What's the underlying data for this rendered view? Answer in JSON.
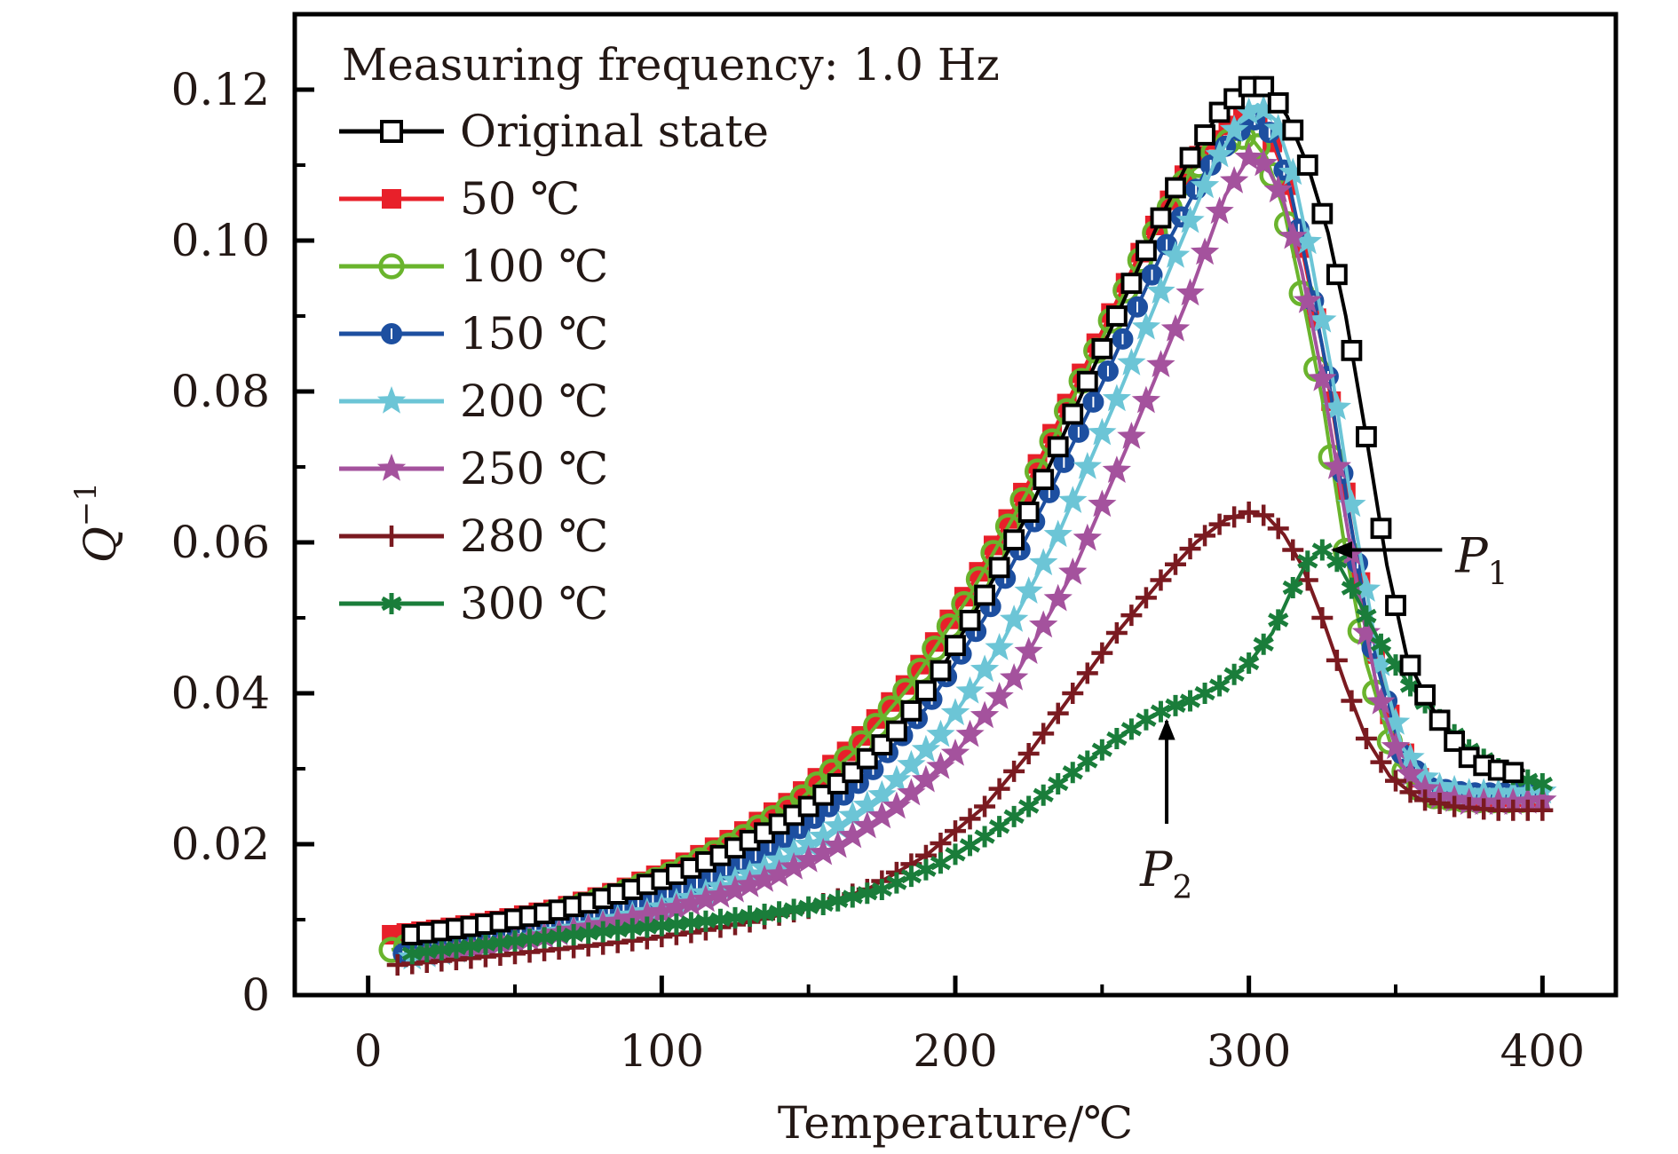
{
  "chart_data": {
    "type": "line",
    "title": "",
    "xlabel": "Temperature/℃",
    "ylabel": "Q",
    "ylabel_superscript": "−1",
    "xlim": [
      -25,
      425
    ],
    "ylim": [
      0,
      0.13
    ],
    "xticks": [
      0,
      100,
      200,
      300,
      400
    ],
    "xtick_labels": [
      "0",
      "100",
      "200",
      "300",
      "400"
    ],
    "yticks": [
      0,
      0.02,
      0.04,
      0.06,
      0.08,
      0.1,
      0.12
    ],
    "ytick_labels": [
      "0",
      "0.02",
      "0.04",
      "0.06",
      "0.08",
      "0.10",
      "0.12"
    ],
    "grid": false,
    "legend": {
      "placement": "top-left",
      "header": "Measuring frequency: 1.0 Hz"
    },
    "series": [
      {
        "name": "Original state",
        "color": "#000000",
        "marker": "square-open",
        "x": [
          15,
          30,
          45,
          60,
          75,
          90,
          105,
          120,
          135,
          150,
          165,
          180,
          195,
          210,
          225,
          240,
          255,
          270,
          280,
          290,
          297,
          302,
          307,
          313,
          320,
          327,
          333,
          340,
          347,
          354,
          361,
          368,
          375,
          382,
          390,
          394
        ],
        "y": [
          0.008,
          0.0088,
          0.0097,
          0.0108,
          0.0122,
          0.014,
          0.016,
          0.0185,
          0.0215,
          0.025,
          0.0295,
          0.035,
          0.043,
          0.053,
          0.064,
          0.077,
          0.09,
          0.103,
          0.111,
          0.117,
          0.1195,
          0.121,
          0.12,
          0.1165,
          0.11,
          0.101,
          0.09,
          0.074,
          0.057,
          0.0445,
          0.039,
          0.0345,
          0.0315,
          0.03,
          0.0295,
          0.0298
        ]
      },
      {
        "name": "50 ℃",
        "color": "#e8202a",
        "marker": "square-filled",
        "x": [
          8,
          25,
          45,
          65,
          85,
          105,
          125,
          145,
          165,
          185,
          205,
          225,
          245,
          265,
          280,
          292,
          300,
          306,
          312,
          318,
          325,
          332,
          340,
          350,
          360,
          375,
          390,
          400
        ],
        "y": [
          0.008,
          0.0088,
          0.01,
          0.0115,
          0.0138,
          0.017,
          0.021,
          0.026,
          0.033,
          0.042,
          0.054,
          0.068,
          0.084,
          0.1,
          0.11,
          0.115,
          0.117,
          0.115,
          0.109,
          0.099,
          0.086,
          0.069,
          0.05,
          0.034,
          0.0275,
          0.0262,
          0.0262,
          0.0262
        ]
      },
      {
        "name": "100 ℃",
        "color": "#6ab42d",
        "marker": "circle-open",
        "x": [
          8,
          25,
          45,
          65,
          85,
          105,
          125,
          145,
          165,
          185,
          205,
          225,
          245,
          265,
          280,
          292,
          300,
          306,
          312,
          318,
          325,
          332,
          340,
          350,
          360,
          375,
          390,
          400
        ],
        "y": [
          0.006,
          0.0075,
          0.0092,
          0.011,
          0.0133,
          0.0163,
          0.0202,
          0.0252,
          0.032,
          0.0412,
          0.053,
          0.067,
          0.083,
          0.099,
          0.109,
          0.113,
          0.114,
          0.111,
          0.104,
          0.093,
          0.079,
          0.061,
          0.044,
          0.031,
          0.0265,
          0.0258,
          0.0258,
          0.026
        ]
      },
      {
        "name": "150 ℃",
        "color": "#1d4fa0",
        "marker": "circle-half",
        "x": [
          12,
          30,
          50,
          70,
          90,
          110,
          130,
          150,
          170,
          190,
          210,
          230,
          250,
          270,
          285,
          295,
          302,
          308,
          314,
          320,
          327,
          334,
          342,
          352,
          362,
          375,
          390,
          400
        ],
        "y": [
          0.0055,
          0.0068,
          0.0082,
          0.0098,
          0.0118,
          0.0145,
          0.018,
          0.0228,
          0.029,
          0.038,
          0.05,
          0.065,
          0.081,
          0.098,
          0.109,
          0.114,
          0.116,
          0.114,
          0.107,
          0.096,
          0.082,
          0.064,
          0.046,
          0.032,
          0.0275,
          0.0268,
          0.0268,
          0.027
        ]
      },
      {
        "name": "200 ℃",
        "color": "#6cc5d6",
        "marker": "star",
        "x": [
          15,
          35,
          55,
          75,
          95,
          115,
          135,
          155,
          175,
          195,
          215,
          235,
          255,
          275,
          288,
          297,
          303,
          309,
          315,
          321,
          328,
          335,
          343,
          352,
          362,
          375,
          390,
          400
        ],
        "y": [
          0.005,
          0.0062,
          0.0076,
          0.0092,
          0.011,
          0.0135,
          0.0168,
          0.021,
          0.0265,
          0.0345,
          0.046,
          0.061,
          0.079,
          0.098,
          0.11,
          0.116,
          0.118,
          0.116,
          0.109,
          0.098,
          0.083,
          0.065,
          0.047,
          0.033,
          0.0278,
          0.0268,
          0.0268,
          0.027
        ]
      },
      {
        "name": "250 ℃",
        "color": "#a4529d",
        "marker": "star",
        "x": [
          20,
          40,
          60,
          80,
          100,
          120,
          140,
          160,
          180,
          200,
          220,
          240,
          260,
          280,
          292,
          300,
          306,
          312,
          318,
          324,
          330,
          337,
          344,
          352,
          362,
          375,
          390,
          400
        ],
        "y": [
          0.0055,
          0.0066,
          0.0078,
          0.0093,
          0.011,
          0.0132,
          0.016,
          0.0198,
          0.025,
          0.032,
          0.042,
          0.056,
          0.074,
          0.093,
          0.106,
          0.111,
          0.11,
          0.105,
          0.096,
          0.084,
          0.07,
          0.054,
          0.04,
          0.0305,
          0.0265,
          0.0255,
          0.0255,
          0.0258
        ]
      },
      {
        "name": "280 ℃",
        "color": "#7a1a20",
        "marker": "plus",
        "x": [
          10,
          30,
          50,
          70,
          90,
          110,
          130,
          150,
          170,
          190,
          210,
          225,
          240,
          255,
          270,
          282,
          292,
          300,
          306,
          312,
          318,
          325,
          333,
          340,
          348,
          358,
          370,
          385,
          400
        ],
        "y": [
          0.004,
          0.0047,
          0.0055,
          0.0063,
          0.0072,
          0.0083,
          0.0097,
          0.0115,
          0.014,
          0.0185,
          0.025,
          0.032,
          0.04,
          0.048,
          0.055,
          0.06,
          0.063,
          0.064,
          0.0635,
          0.061,
          0.057,
          0.05,
          0.041,
          0.034,
          0.029,
          0.026,
          0.025,
          0.0245,
          0.0245
        ]
      },
      {
        "name": "300 ℃",
        "color": "#1a7d3a",
        "marker": "asterisk",
        "x": [
          15,
          35,
          55,
          75,
          95,
          115,
          135,
          155,
          175,
          195,
          210,
          225,
          240,
          255,
          265,
          272,
          280,
          290,
          300,
          308,
          315,
          320,
          325,
          330,
          337,
          345,
          355,
          365,
          375,
          385,
          395,
          400
        ],
        "y": [
          0.0055,
          0.0065,
          0.0074,
          0.0082,
          0.009,
          0.0098,
          0.0107,
          0.012,
          0.014,
          0.0175,
          0.021,
          0.025,
          0.0295,
          0.034,
          0.0365,
          0.038,
          0.039,
          0.041,
          0.044,
          0.048,
          0.054,
          0.0575,
          0.059,
          0.0575,
          0.0525,
          0.0465,
          0.041,
          0.0365,
          0.0325,
          0.03,
          0.0285,
          0.028
        ]
      }
    ],
    "annotations": [
      {
        "label": "P",
        "subscript": "1",
        "arrow_to": [
          325,
          0.059
        ],
        "direction": "left"
      },
      {
        "label": "P",
        "subscript": "2",
        "arrow_to": [
          272,
          0.038
        ],
        "direction": "up"
      }
    ]
  }
}
